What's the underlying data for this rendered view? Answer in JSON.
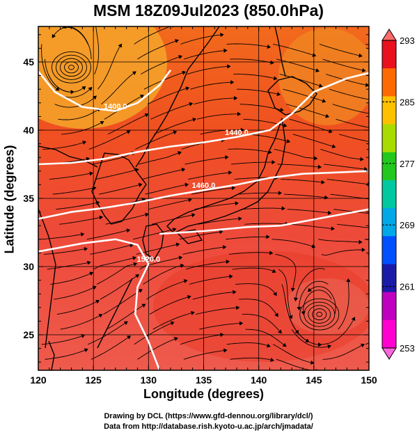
{
  "title": "MSM 18Z09Jul2023 (850.0hPa)",
  "xlabel": "Longitude (degrees)",
  "ylabel": "Latitude  (degrees)",
  "credits": [
    "Drawing by DCL (https://www.gfd-dennou.org/library/dcl/)",
    "Data from http://database.rish.kyoto-u.ac.jp/arch/jmadata/"
  ],
  "map": {
    "lon_range": [
      120,
      150
    ],
    "lat_range": [
      22.4,
      47.6
    ],
    "lon_ticks": [
      "120",
      "125",
      "130",
      "135",
      "140",
      "145",
      "150"
    ],
    "lat_ticks": [
      "25",
      "30",
      "35",
      "40",
      "45"
    ],
    "contours": [
      {
        "label": "1400.0",
        "points": [
          [
            120,
            44.3
          ],
          [
            121.5,
            42.8
          ],
          [
            124,
            41.7
          ],
          [
            127,
            41.4
          ],
          [
            129,
            42.0
          ],
          [
            131,
            43.3
          ],
          [
            132,
            44.4
          ]
        ]
      },
      {
        "label": "1440.0",
        "points": [
          [
            120,
            37.5
          ],
          [
            123,
            37.6
          ],
          [
            126,
            37.9
          ],
          [
            129,
            38.4
          ],
          [
            132,
            38.8
          ],
          [
            135,
            39.1
          ],
          [
            138,
            39.5
          ],
          [
            141,
            40.0
          ],
          [
            143,
            41.2
          ],
          [
            145,
            42.8
          ],
          [
            148,
            43.8
          ],
          [
            150,
            44.2
          ]
        ]
      },
      {
        "label": "1460.0",
        "points": [
          [
            120,
            33.5
          ],
          [
            123,
            34.0
          ],
          [
            126,
            34.3
          ],
          [
            129,
            34.7
          ],
          [
            132,
            35.2
          ],
          [
            135,
            35.6
          ],
          [
            138,
            36.0
          ],
          [
            141,
            36.5
          ],
          [
            144,
            36.8
          ],
          [
            147,
            36.9
          ],
          [
            150,
            37.0
          ]
        ]
      },
      {
        "label": "1520.0",
        "points": [
          [
            120,
            31.1
          ],
          [
            124,
            31.7
          ],
          [
            127,
            32.0
          ],
          [
            129,
            31.6
          ],
          [
            130,
            30.2
          ],
          [
            129,
            28.5
          ],
          [
            128.8,
            26.5
          ],
          [
            130,
            24.5
          ],
          [
            131,
            22.4
          ]
        ]
      },
      {
        "label": "",
        "points": [
          [
            131,
            32.4
          ],
          [
            135,
            32.6
          ],
          [
            139,
            32.9
          ],
          [
            142,
            33.0
          ],
          [
            146,
            33.6
          ],
          [
            150,
            34.2
          ]
        ]
      }
    ],
    "lows": [
      [
        123,
        44.6
      ],
      [
        145.5,
        26.5
      ]
    ]
  },
  "colorbar": {
    "labels": [
      "293",
      "285",
      "277",
      "269",
      "261",
      "253"
    ],
    "colors": [
      "#e8111d",
      "#ff6a00",
      "#ffc000",
      "#a8dc00",
      "#22c81e",
      "#00c8a0",
      "#00a8e8",
      "#0050ff",
      "#1a1aa8",
      "#c000c0",
      "#ff00d0"
    ]
  }
}
